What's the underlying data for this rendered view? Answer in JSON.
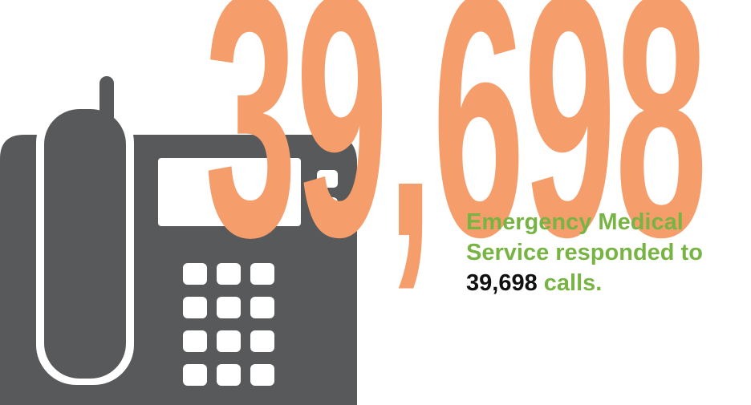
{
  "headline": {
    "number": "39,698",
    "color": "#F59E6B"
  },
  "caption": {
    "line1": "Emergency Medical",
    "line2": "Service responded to",
    "line3_number": "39,698",
    "line3_suffix": " calls.",
    "accent_color": "#78B444",
    "number_color": "#111111"
  },
  "illustration": {
    "icon": "desk-phone-icon",
    "color": "#58595B"
  }
}
